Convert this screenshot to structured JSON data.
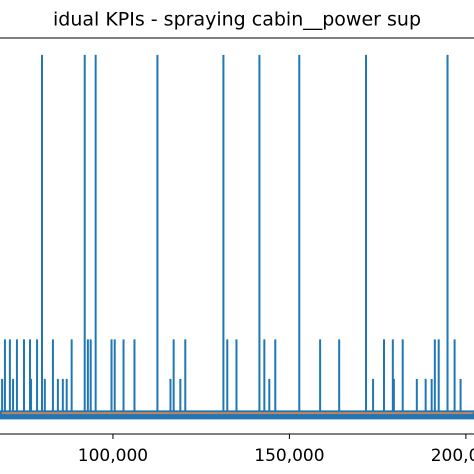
{
  "chart_data": {
    "type": "spike",
    "title": "idual KPIs - spraying cabin__power sup",
    "xlim": [
      68000,
      202300
    ],
    "ylim": [
      -0.053,
      1.047
    ],
    "xticks": [
      {
        "value": 100000,
        "label": "100,000"
      },
      {
        "value": 150000,
        "label": "150,000"
      },
      {
        "value": 200000,
        "label": "200,000"
      }
    ],
    "series": [
      {
        "color": "#1f77b4",
        "x": [
          68600,
          69400,
          70800,
          71700,
          72800,
          74800,
          76500,
          76800,
          78500,
          79900,
          80700,
          83000,
          84400,
          85800,
          86900,
          88300,
          92000,
          92900,
          93700,
          95100,
          99600,
          100500,
          103000,
          106100,
          112600,
          116300,
          117200,
          119100,
          120500,
          131300,
          132400,
          135000,
          141500,
          142900,
          144300,
          146000,
          152800,
          158700,
          164100,
          171700,
          173700,
          176800,
          179300,
          179600,
          182100,
          186100,
          188600,
          190300,
          191200,
          192300,
          194800,
          196800,
          198500
        ],
        "values": [
          0.1,
          0.21,
          0.21,
          0.1,
          0.21,
          0.21,
          0.21,
          0.1,
          0.21,
          1,
          0.1,
          0.21,
          0.1,
          0.1,
          0.1,
          0.21,
          1,
          0.21,
          0.21,
          1,
          0.21,
          0.21,
          0.21,
          0.21,
          1,
          0.1,
          0.21,
          0.1,
          0.21,
          1,
          0.21,
          0.21,
          1,
          0.21,
          0.1,
          0.21,
          1,
          0.21,
          0.21,
          1,
          0.1,
          0.21,
          0.21,
          0.1,
          0.21,
          0.1,
          0.1,
          0.1,
          0.21,
          0.21,
          1,
          0.21,
          0.1
        ]
      },
      {
        "color": "#c8825a",
        "x": [
          68500,
          202000
        ],
        "values": [
          0.005,
          0.005
        ]
      }
    ]
  }
}
